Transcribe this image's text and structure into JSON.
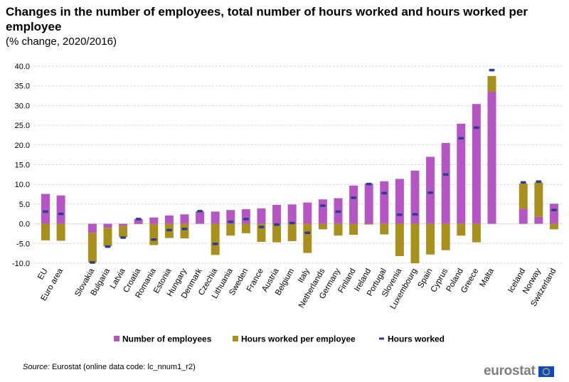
{
  "title": "Changes in the number of employees, total number of hours worked and hours worked per employee",
  "subtitle": "(% change, 2020/2016)",
  "source_label": "Source:",
  "source_text": "Eurostat (online data code: lc_nnum1_r2)",
  "logo_text": "eurostat",
  "colors": {
    "employees": "#b656c5",
    "hours_per_employee": "#a9901d",
    "hours_worked": "#2b3d97",
    "grid": "#d9d9d9"
  },
  "chart_data": {
    "type": "bar",
    "stacked": true,
    "ylim": [
      -10,
      40
    ],
    "yticks": [
      "-10.0",
      "-5.0",
      "0.0",
      "5.0",
      "10.0",
      "15.0",
      "20.0",
      "25.0",
      "30.0",
      "35.0",
      "40.0"
    ],
    "grid": true,
    "legend_position": "bottom",
    "groups": [
      [
        "EU",
        "Euro area"
      ],
      [
        "Slovakia",
        "Bulgaria",
        "Latvia",
        "Croatia",
        "Romania",
        "Estonia",
        "Hungary",
        "Denmark",
        "Czechia",
        "Lithuania",
        "Sweden",
        "France",
        "Austria",
        "Belgium",
        "Italy",
        "Netherlands",
        "Germany",
        "Finland",
        "Ireland",
        "Portugal",
        "Slovenia",
        "Luxembourg",
        "Spain",
        "Cyprus",
        "Poland",
        "Greece",
        "Malta"
      ],
      [
        "Iceland",
        "Norway",
        "Switzerland"
      ]
    ],
    "categories": [
      "EU",
      "Euro area",
      "Slovakia",
      "Bulgaria",
      "Latvia",
      "Croatia",
      "Romania",
      "Estonia",
      "Hungary",
      "Denmark",
      "Czechia",
      "Lithuania",
      "Sweden",
      "France",
      "Austria",
      "Belgium",
      "Italy",
      "Netherlands",
      "Germany",
      "Finland",
      "Ireland",
      "Portugal",
      "Slovenia",
      "Luxembourg",
      "Spain",
      "Cyprus",
      "Poland",
      "Greece",
      "Malta",
      "Iceland",
      "Norway",
      "Switzerland"
    ],
    "series": [
      {
        "name": "Number of employees",
        "kind": "bar",
        "values": [
          7.6,
          7.2,
          -2.3,
          -1.0,
          -0.5,
          1.2,
          1.6,
          2.1,
          2.4,
          2.9,
          3.1,
          3.5,
          3.7,
          3.9,
          4.8,
          4.9,
          5.4,
          6.2,
          6.5,
          9.7,
          10.2,
          10.8,
          11.4,
          13.5,
          17.0,
          20.5,
          25.4,
          30.4,
          33.5,
          3.8,
          1.8,
          5.1
        ]
      },
      {
        "name": "Hours worked per employee",
        "kind": "bar",
        "values": [
          -4.2,
          -4.3,
          -7.5,
          -4.7,
          -2.9,
          -0.1,
          -5.4,
          -3.6,
          -3.7,
          0.3,
          -7.9,
          -3.0,
          -2.4,
          -4.6,
          -4.7,
          -4.4,
          -7.4,
          -1.4,
          -3.0,
          -2.8,
          -0.2,
          -2.7,
          -8.2,
          -10.0,
          -7.8,
          -6.7,
          -3.0,
          -4.7,
          4.0,
          6.4,
          8.7,
          -1.4
        ]
      },
      {
        "name": "Hours worked",
        "kind": "marker",
        "values": [
          3.1,
          2.5,
          -9.8,
          -5.8,
          -3.5,
          1.2,
          -4.0,
          -1.6,
          -1.3,
          3.2,
          -5.1,
          0.5,
          1.2,
          -0.8,
          -0.2,
          0.2,
          -2.3,
          4.6,
          3.1,
          6.6,
          10.1,
          7.8,
          2.3,
          2.4,
          7.9,
          12.5,
          21.7,
          24.4,
          39.0,
          10.5,
          10.7,
          3.5
        ]
      }
    ]
  }
}
